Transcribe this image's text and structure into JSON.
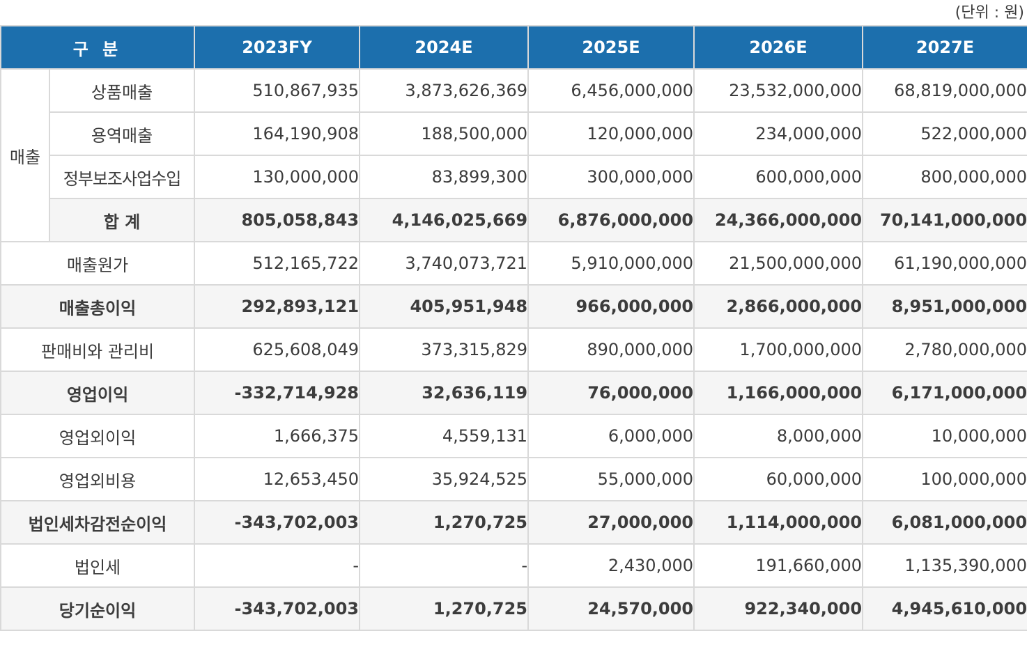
{
  "unit_label": "(단위 : 원)",
  "colors": {
    "header_bg": "#1c6fad",
    "header_text": "#ffffff",
    "border": "#d9d9d9",
    "bold_row_bg": "#f5f5f5",
    "text": "#3c3c3c"
  },
  "table": {
    "header": {
      "category": "구 분",
      "years": [
        "2023FY",
        "2024E",
        "2025E",
        "2026E",
        "2027E"
      ]
    },
    "revenue_group": {
      "label": "매출",
      "rows": [
        {
          "label": "상품매출",
          "bold": false,
          "values": [
            "510,867,935",
            "3,873,626,369",
            "6,456,000,000",
            "23,532,000,000",
            "68,819,000,000"
          ]
        },
        {
          "label": "용역매출",
          "bold": false,
          "values": [
            "164,190,908",
            "188,500,000",
            "120,000,000",
            "234,000,000",
            "522,000,000"
          ]
        },
        {
          "label": "정부보조사업수입",
          "bold": false,
          "values": [
            "130,000,000",
            "83,899,300",
            "300,000,000",
            "600,000,000",
            "800,000,000"
          ]
        },
        {
          "label": "합 계",
          "bold": true,
          "values": [
            "805,058,843",
            "4,146,025,669",
            "6,876,000,000",
            "24,366,000,000",
            "70,141,000,000"
          ]
        }
      ]
    },
    "rows": [
      {
        "label": "매출원가",
        "bold": false,
        "values": [
          "512,165,722",
          "3,740,073,721",
          "5,910,000,000",
          "21,500,000,000",
          "61,190,000,000"
        ]
      },
      {
        "label": "매출총이익",
        "bold": true,
        "values": [
          "292,893,121",
          "405,951,948",
          "966,000,000",
          "2,866,000,000",
          "8,951,000,000"
        ]
      },
      {
        "label": "판매비와 관리비",
        "bold": false,
        "values": [
          "625,608,049",
          "373,315,829",
          "890,000,000",
          "1,700,000,000",
          "2,780,000,000"
        ]
      },
      {
        "label": "영업이익",
        "bold": true,
        "values": [
          "-332,714,928",
          "32,636,119",
          "76,000,000",
          "1,166,000,000",
          "6,171,000,000"
        ]
      },
      {
        "label": "영업외이익",
        "bold": false,
        "values": [
          "1,666,375",
          "4,559,131",
          "6,000,000",
          "8,000,000",
          "10,000,000"
        ]
      },
      {
        "label": "영업외비용",
        "bold": false,
        "values": [
          "12,653,450",
          "35,924,525",
          "55,000,000",
          "60,000,000",
          "100,000,000"
        ]
      },
      {
        "label": "법인세차감전순이익",
        "bold": true,
        "values": [
          "-343,702,003",
          "1,270,725",
          "27,000,000",
          "1,114,000,000",
          "6,081,000,000"
        ]
      },
      {
        "label": "법인세",
        "bold": false,
        "values": [
          "-",
          "-",
          "2,430,000",
          "191,660,000",
          "1,135,390,000"
        ]
      },
      {
        "label": "당기순이익",
        "bold": true,
        "values": [
          "-343,702,003",
          "1,270,725",
          "24,570,000",
          "922,340,000",
          "4,945,610,000"
        ]
      }
    ]
  }
}
